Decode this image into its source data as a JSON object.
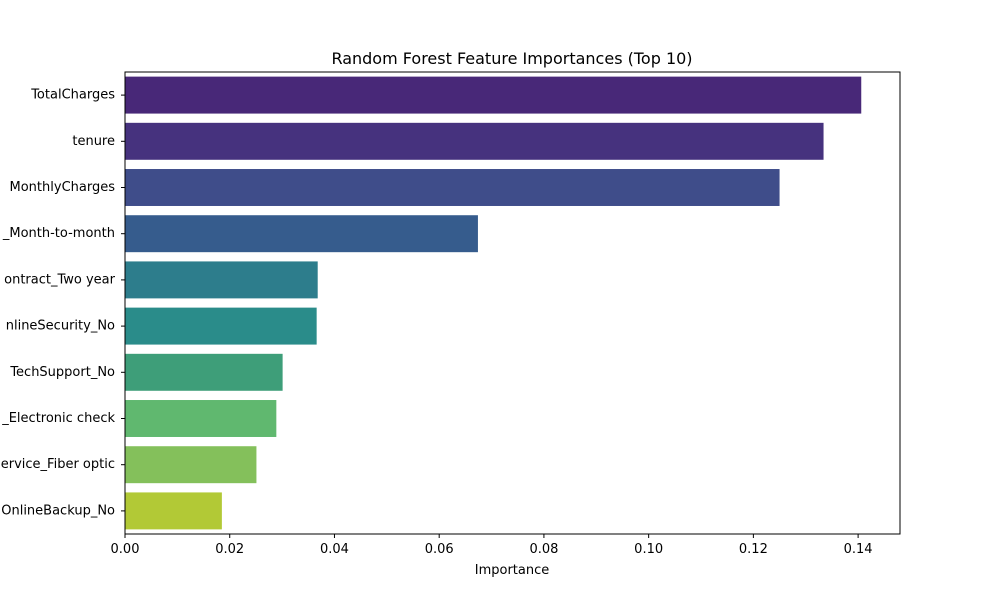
{
  "chart_data": {
    "type": "bar",
    "orientation": "horizontal",
    "title": "Random Forest Feature Importances (Top 10)",
    "xlabel": "Importance",
    "ylabel": "",
    "xlim": [
      0,
      0.148
    ],
    "xticks": [
      0.0,
      0.02,
      0.04,
      0.06,
      0.08,
      0.1,
      0.12,
      0.14
    ],
    "xtick_labels": [
      "0.00",
      "0.02",
      "0.04",
      "0.06",
      "0.08",
      "0.10",
      "0.12",
      "0.14"
    ],
    "categories": [
      "TotalCharges",
      "tenure",
      "MonthlyCharges",
      "_Month-to-month",
      "ontract_Two year",
      "nlineSecurity_No",
      "TechSupport_No",
      "_Electronic check",
      "ervice_Fiber optic",
      "OnlineBackup_No"
    ],
    "values": [
      0.1406,
      0.1334,
      0.125,
      0.0674,
      0.0368,
      0.0366,
      0.0301,
      0.0289,
      0.0251,
      0.0185
    ],
    "colors": [
      "#482878",
      "#46327e",
      "#3f4d8a",
      "#365c8d",
      "#2d7d8c",
      "#2a8c8a",
      "#3e9e79",
      "#60b86f",
      "#84c05b",
      "#b2c936"
    ],
    "grid": false,
    "legend": "none"
  }
}
